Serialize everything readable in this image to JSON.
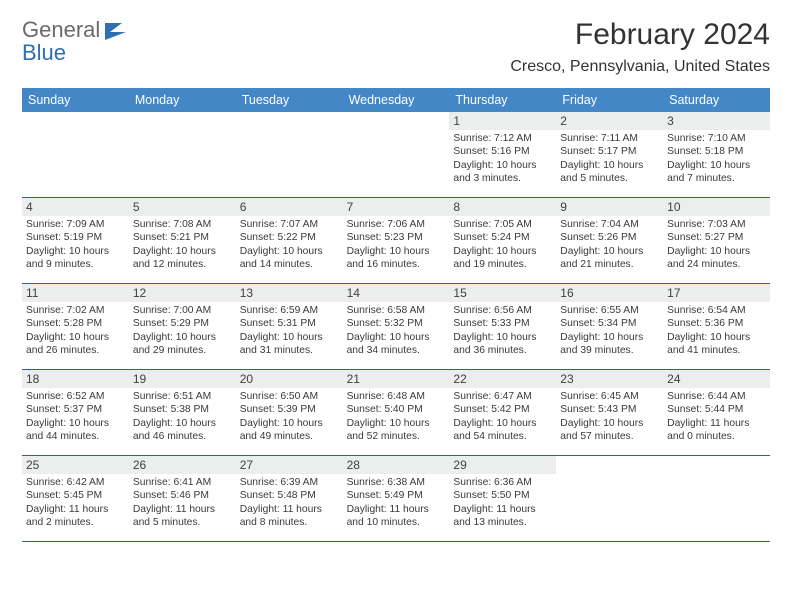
{
  "brand": {
    "word1": "General",
    "word2": "Blue"
  },
  "title": "February 2024",
  "location": "Cresco, Pennsylvania, United States",
  "colors": {
    "header_bg": "#4487c7",
    "header_text": "#ffffff",
    "cell_border": "#2f5f8f",
    "daynum_bg": "#eceded",
    "text": "#3a3a3a",
    "logo_gray": "#6a6a6a",
    "logo_blue": "#2f6fb3"
  },
  "weekdays": [
    "Sunday",
    "Monday",
    "Tuesday",
    "Wednesday",
    "Thursday",
    "Friday",
    "Saturday"
  ],
  "first_weekday_index": 4,
  "days": [
    {
      "n": 1,
      "sunrise": "7:12 AM",
      "sunset": "5:16 PM",
      "daylight": "10 hours and 3 minutes."
    },
    {
      "n": 2,
      "sunrise": "7:11 AM",
      "sunset": "5:17 PM",
      "daylight": "10 hours and 5 minutes."
    },
    {
      "n": 3,
      "sunrise": "7:10 AM",
      "sunset": "5:18 PM",
      "daylight": "10 hours and 7 minutes."
    },
    {
      "n": 4,
      "sunrise": "7:09 AM",
      "sunset": "5:19 PM",
      "daylight": "10 hours and 9 minutes."
    },
    {
      "n": 5,
      "sunrise": "7:08 AM",
      "sunset": "5:21 PM",
      "daylight": "10 hours and 12 minutes."
    },
    {
      "n": 6,
      "sunrise": "7:07 AM",
      "sunset": "5:22 PM",
      "daylight": "10 hours and 14 minutes."
    },
    {
      "n": 7,
      "sunrise": "7:06 AM",
      "sunset": "5:23 PM",
      "daylight": "10 hours and 16 minutes."
    },
    {
      "n": 8,
      "sunrise": "7:05 AM",
      "sunset": "5:24 PM",
      "daylight": "10 hours and 19 minutes."
    },
    {
      "n": 9,
      "sunrise": "7:04 AM",
      "sunset": "5:26 PM",
      "daylight": "10 hours and 21 minutes."
    },
    {
      "n": 10,
      "sunrise": "7:03 AM",
      "sunset": "5:27 PM",
      "daylight": "10 hours and 24 minutes."
    },
    {
      "n": 11,
      "sunrise": "7:02 AM",
      "sunset": "5:28 PM",
      "daylight": "10 hours and 26 minutes."
    },
    {
      "n": 12,
      "sunrise": "7:00 AM",
      "sunset": "5:29 PM",
      "daylight": "10 hours and 29 minutes."
    },
    {
      "n": 13,
      "sunrise": "6:59 AM",
      "sunset": "5:31 PM",
      "daylight": "10 hours and 31 minutes."
    },
    {
      "n": 14,
      "sunrise": "6:58 AM",
      "sunset": "5:32 PM",
      "daylight": "10 hours and 34 minutes."
    },
    {
      "n": 15,
      "sunrise": "6:56 AM",
      "sunset": "5:33 PM",
      "daylight": "10 hours and 36 minutes."
    },
    {
      "n": 16,
      "sunrise": "6:55 AM",
      "sunset": "5:34 PM",
      "daylight": "10 hours and 39 minutes."
    },
    {
      "n": 17,
      "sunrise": "6:54 AM",
      "sunset": "5:36 PM",
      "daylight": "10 hours and 41 minutes."
    },
    {
      "n": 18,
      "sunrise": "6:52 AM",
      "sunset": "5:37 PM",
      "daylight": "10 hours and 44 minutes."
    },
    {
      "n": 19,
      "sunrise": "6:51 AM",
      "sunset": "5:38 PM",
      "daylight": "10 hours and 46 minutes."
    },
    {
      "n": 20,
      "sunrise": "6:50 AM",
      "sunset": "5:39 PM",
      "daylight": "10 hours and 49 minutes."
    },
    {
      "n": 21,
      "sunrise": "6:48 AM",
      "sunset": "5:40 PM",
      "daylight": "10 hours and 52 minutes."
    },
    {
      "n": 22,
      "sunrise": "6:47 AM",
      "sunset": "5:42 PM",
      "daylight": "10 hours and 54 minutes."
    },
    {
      "n": 23,
      "sunrise": "6:45 AM",
      "sunset": "5:43 PM",
      "daylight": "10 hours and 57 minutes."
    },
    {
      "n": 24,
      "sunrise": "6:44 AM",
      "sunset": "5:44 PM",
      "daylight": "11 hours and 0 minutes."
    },
    {
      "n": 25,
      "sunrise": "6:42 AM",
      "sunset": "5:45 PM",
      "daylight": "11 hours and 2 minutes."
    },
    {
      "n": 26,
      "sunrise": "6:41 AM",
      "sunset": "5:46 PM",
      "daylight": "11 hours and 5 minutes."
    },
    {
      "n": 27,
      "sunrise": "6:39 AM",
      "sunset": "5:48 PM",
      "daylight": "11 hours and 8 minutes."
    },
    {
      "n": 28,
      "sunrise": "6:38 AM",
      "sunset": "5:49 PM",
      "daylight": "11 hours and 10 minutes."
    },
    {
      "n": 29,
      "sunrise": "6:36 AM",
      "sunset": "5:50 PM",
      "daylight": "11 hours and 13 minutes."
    }
  ],
  "labels": {
    "sunrise": "Sunrise:",
    "sunset": "Sunset:",
    "daylight": "Daylight:"
  }
}
